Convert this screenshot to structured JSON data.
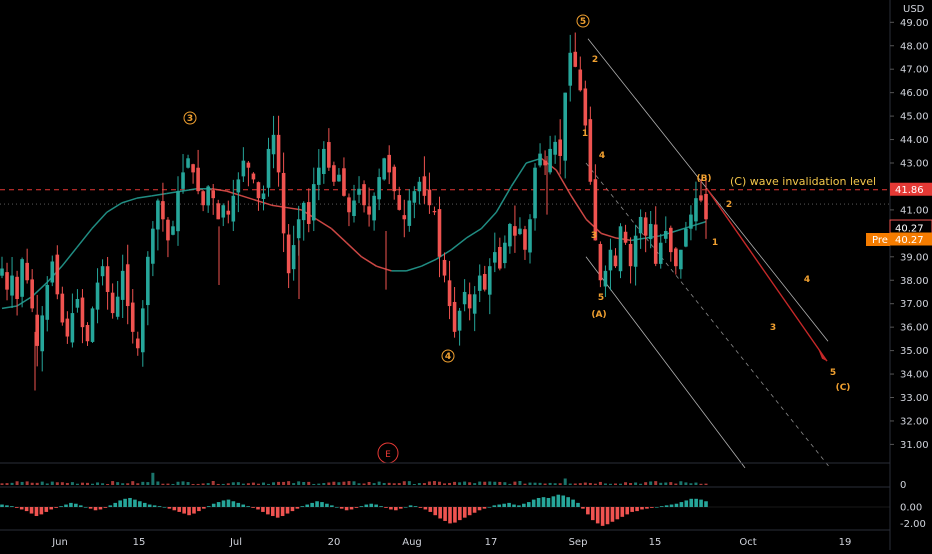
{
  "header": {
    "currency": "USD"
  },
  "chart_data": [
    {
      "type": "candlestick",
      "title": "",
      "y_axis": {
        "ticks": [
          "49.00",
          "48.00",
          "47.00",
          "46.00",
          "45.00",
          "44.00",
          "43.00",
          "42.00",
          "41.00",
          "40.00",
          "39.00",
          "38.00",
          "37.00",
          "36.00",
          "35.00",
          "34.00",
          "33.00",
          "32.00",
          "31.00"
        ],
        "ylim": [
          30.0,
          49.8
        ]
      },
      "x_axis": {
        "ticks": [
          "Jun",
          "15",
          "Jul",
          "20",
          "Aug",
          "17",
          "Sep",
          "15",
          "Oct",
          "19"
        ]
      },
      "approx_closes": [
        38.5,
        37.6,
        38.2,
        37.2,
        38.9,
        38.0,
        36.8,
        35.2,
        36.5,
        37.8,
        38.8,
        37.4,
        36.2,
        35.6,
        36.6,
        37.2,
        36.0,
        35.4,
        36.8,
        37.9,
        38.6,
        37.5,
        36.6,
        37.3,
        38.4,
        36.9,
        35.8,
        35.1,
        36.8,
        39.0,
        40.2,
        41.4,
        40.6,
        39.7,
        40.3,
        41.8,
        42.6,
        43.2,
        42.6,
        41.8,
        41.2,
        42.0,
        41.5,
        40.6,
        41.2,
        40.8,
        41.6,
        42.3,
        43.1,
        42.8,
        42.3,
        41.5,
        41.7,
        43.6,
        44.2,
        42.6,
        40.0,
        38.3,
        39.5,
        40.6,
        41.3,
        40.4,
        42.1,
        42.8,
        43.6,
        42.8,
        42.2,
        42.5,
        41.6,
        40.9,
        41.4,
        41.9,
        41.2,
        40.8,
        41.6,
        42.4,
        43.2,
        42.6,
        41.8,
        41.0,
        40.6,
        41.4,
        41.8,
        42.2,
        41.6,
        41.2,
        40.9,
        39.0,
        38.2,
        36.9,
        35.8,
        36.7,
        37.5,
        36.8,
        37.4,
        38.2,
        37.6,
        38.6,
        39.2,
        38.5,
        39.6,
        40.4,
        39.9,
        40.2,
        39.3,
        40.6,
        42.8,
        43.4,
        42.9,
        43.6,
        43.9,
        43.3,
        46.0,
        47.7,
        47.1,
        46.1,
        44.6,
        42.2,
        39.7,
        38.0,
        38.4,
        39.3,
        38.6,
        40.3,
        39.6,
        38.6,
        39.9,
        40.7,
        39.9,
        40.4,
        38.7,
        39.6,
        40.1,
        39.2,
        38.6,
        39.3,
        40.2,
        40.8,
        41.5,
        41.4,
        40.6
      ],
      "moving_average_approx": [
        36.8,
        36.9,
        37.3,
        37.9,
        38.6,
        39.4,
        40.2,
        40.9,
        41.3,
        41.5,
        41.6,
        41.7,
        41.8,
        41.9,
        41.9,
        41.8,
        41.6,
        41.4,
        41.2,
        41.1,
        41.0,
        40.6,
        40.2,
        39.6,
        39.0,
        38.6,
        38.4,
        38.4,
        38.6,
        38.9,
        39.3,
        39.8,
        40.2,
        40.9,
        42.0,
        43.0,
        43.2,
        42.7,
        41.6,
        40.6,
        40.0,
        39.8,
        39.7,
        39.8,
        39.9,
        40.1,
        40.3,
        40.5
      ],
      "annotations": {
        "invalidation_level_label": "(C) wave invalidation level",
        "impulse": [
          {
            "text": "3",
            "date": "Jun 24",
            "price": 44.8
          },
          {
            "text": "4",
            "date": "Aug 11",
            "price": 35.0
          },
          {
            "text": "5",
            "date": "Sep 1",
            "price": 49.0
          }
        ],
        "minor_waves": [
          {
            "text": "1",
            "date": "Aug 31",
            "price": 44.3
          },
          {
            "text": "2",
            "date": "Sep 2",
            "price": 47.5
          },
          {
            "text": "3",
            "date": "Sep 3",
            "price": 40.0
          },
          {
            "text": "4",
            "date": "Sep 4",
            "price": 42.9
          },
          {
            "text": "5",
            "date": "Sep 5",
            "price": 37.0
          }
        ],
        "correction": [
          {
            "text": "(A)",
            "date": "Sep 5",
            "price": 36.3
          },
          {
            "text": "(B)",
            "date": "Sep 24",
            "price": 42.3
          },
          {
            "text": "(C)",
            "date": "Oct 21",
            "price": 33.5
          }
        ],
        "projected_waves": [
          {
            "text": "1",
            "date": "Sep 25",
            "price": 39.8
          },
          {
            "text": "2",
            "date": "Sep 27",
            "price": 41.2
          },
          {
            "text": "3",
            "date": "Oct 6",
            "price": 36.0
          },
          {
            "text": "4",
            "date": "Oct 10",
            "price": 38.0
          },
          {
            "text": "5",
            "date": "Oct 21",
            "price": 34.0
          }
        ],
        "earnings_marker": "E"
      },
      "price_labels": {
        "invalidation": "41.86",
        "last": "40.27",
        "pre_label": "Pre",
        "pre_value": "40.27"
      },
      "colors": {
        "up": "#26a69a",
        "down": "#ef5350",
        "wave": "#f0a030",
        "invalidation_line": "#e53935",
        "projection_arrow": "#c62828",
        "ma_up": "#26a69a",
        "ma_down": "#ef5350"
      }
    },
    {
      "type": "bar",
      "title": "",
      "y_axis": {
        "ticks": [
          "0"
        ]
      },
      "values_note": "volume"
    },
    {
      "type": "histogram",
      "title": "",
      "y_axis": {
        "ticks": [
          "0.00",
          "-2.00"
        ],
        "ylim": [
          -3.2,
          1.6
        ]
      },
      "approx_values": [
        0.3,
        0.2,
        0.1,
        -0.1,
        -0.3,
        -0.5,
        -0.8,
        -1.1,
        -0.9,
        -0.6,
        -0.3,
        -0.1,
        0.1,
        0.3,
        0.5,
        0.4,
        0.2,
        0.0,
        -0.2,
        -0.4,
        -0.3,
        -0.1,
        0.2,
        0.5,
        0.8,
        1.0,
        1.1,
        0.9,
        0.7,
        0.5,
        0.3,
        0.2,
        0.1,
        0.0,
        -0.2,
        -0.4,
        -0.6,
        -0.8,
        -1.0,
        -0.8,
        -0.5,
        -0.2,
        0.1,
        0.4,
        0.6,
        0.8,
        0.9,
        0.7,
        0.5,
        0.3,
        0.1,
        -0.1,
        -0.3,
        -0.6,
        -0.9,
        -1.1,
        -1.3,
        -1.1,
        -0.8,
        -0.5,
        -0.2,
        0.1,
        0.3,
        0.5,
        0.7,
        0.6,
        0.4,
        0.2,
        0.0,
        -0.2,
        -0.4,
        -0.3,
        -0.1,
        0.1,
        0.3,
        0.4,
        0.3,
        0.1,
        -0.1,
        -0.3,
        -0.4,
        -0.2,
        0.0,
        0.2,
        0.1,
        -0.1,
        -0.3,
        -0.6,
        -1.0,
        -1.4,
        -1.7,
        -2.0,
        -1.9,
        -1.6,
        -1.3,
        -1.0,
        -0.7,
        -0.4,
        -0.2,
        0.0,
        0.2,
        0.3,
        0.4,
        0.5,
        0.3,
        0.2,
        0.4,
        0.6,
        0.9,
        1.1,
        1.2,
        1.1,
        1.3,
        1.5,
        1.4,
        1.2,
        0.9,
        0.5,
        -0.2,
        -0.9,
        -1.6,
        -2.0,
        -2.3,
        -2.1,
        -1.8,
        -1.5,
        -1.2,
        -0.9,
        -0.6,
        -0.5,
        -0.3,
        -0.2,
        -0.1,
        0.0,
        0.1,
        0.2,
        0.3,
        0.4,
        0.6,
        0.8,
        1.0,
        1.0,
        0.9,
        0.7
      ]
    }
  ]
}
